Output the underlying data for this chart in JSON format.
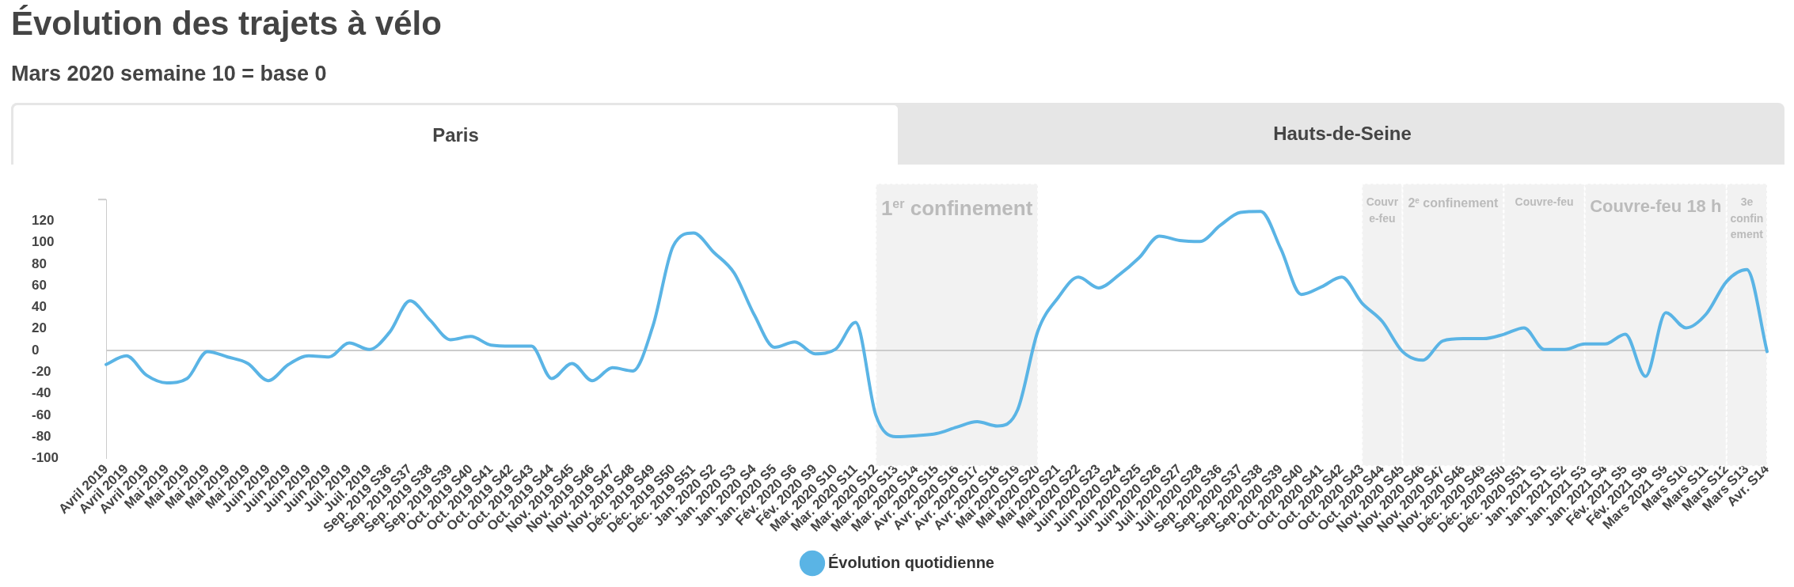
{
  "chart_data": {
    "type": "line",
    "title": "Évolution des trajets à vélo",
    "subtitle": "Mars 2020 semaine 10 = base 0",
    "annotations": [
      "Paris",
      "Hauts-de-Seine"
    ],
    "categories": [
      "Avril 2019",
      "Avril 2019",
      "Avril 2019",
      "Mai 2019",
      "Mai 2019",
      "Mai 2019",
      "Mai 2019",
      "Mai 2019",
      "Juin 2019",
      "Juin 2019",
      "Juin 2019",
      "Juin 2019",
      "Juil. 2019",
      "Juil. 2019",
      "Sep. 2019 S36",
      "Sep. 2019 S37",
      "Sep. 2019 S38",
      "Sep. 2019 S39",
      "Oct. 2019 S40",
      "Oct. 2019 S41",
      "Oct. 2019 S42",
      "Oct. 2019 S43",
      "Oct. 2019 S44",
      "Nov. 2019 S45",
      "Nov. 2019 S46",
      "Nov. 2019 S47",
      "Nov. 2019 S48",
      "Déc. 2019 S49",
      "Déc. 2019 S50",
      "Déc. 2019 S51",
      "Jan. 2020 S2",
      "Jan. 2020 S3",
      "Jan. 2020 S4",
      "Jan. 2020 S5",
      "Fév. 2020 S6",
      "Fév. 2020 S9",
      "Mar. 2020 S10",
      "Mar. 2020 S11",
      "Mar. 2020 S12",
      "Mar. 2020 S13",
      "Mar. 2020 S14",
      "Avr. 2020 S15",
      "Avr. 2020 S16",
      "Avr. 2020 S17",
      "Avr. 2020 S18",
      "Mai 2020 S19",
      "Mai 2020 S20",
      "Mai 2020 S21",
      "Mai 2020 S22",
      "Juin 2020 S23",
      "Juin 2020 S24",
      "Juin 2020 S25",
      "Juin 2020 S26",
      "Juil. 2020 S27",
      "Juil. 2020 S28",
      "Sep. 2020 S36",
      "Sep. 2020 S37",
      "Sep. 2020 S38",
      "Sep. 2020 S39",
      "Oct. 2020 S40",
      "Oct. 2020 S41",
      "Oct. 2020 S42",
      "Oct. 2020 S43",
      "Oct. 2020 S44",
      "Nov. 2020 S45",
      "Nov. 2020 S46",
      "Nov. 2020 S47",
      "Nov. 2020 S48",
      "Déc. 2020 S49",
      "Déc. 2020 S50",
      "Déc. 2020 S51",
      "Jan. 2021 S1",
      "Jan. 2021 S2",
      "Jan. 2021 S3",
      "Jan. 2021 S4",
      "Fév. 2021 S5",
      "Fév. 2021 S6",
      "Mars 2021 S9",
      "Mars S10",
      "Mars S11",
      "Mars S12",
      "Mars S13",
      "Avr. S14"
    ],
    "series": [
      {
        "name": "Évolution quotidienne",
        "color": "#5ab4e5",
        "values": [
          -13,
          -5,
          -23,
          -30,
          -26,
          -1,
          -6,
          -12,
          -28,
          -13,
          -5,
          -6,
          7,
          1,
          17,
          46,
          28,
          10,
          13,
          5,
          4,
          4,
          -26,
          -12,
          -28,
          -16,
          -19,
          23,
          97,
          109,
          91,
          72,
          33,
          3,
          8,
          -3,
          1,
          26,
          -60,
          -80,
          -79,
          -77,
          -71,
          -66,
          -70,
          -55,
          18,
          49,
          68,
          58,
          70,
          86,
          106,
          102,
          101,
          116,
          128,
          129,
          94,
          52,
          59,
          68,
          44,
          27,
          -1,
          -9,
          9,
          11,
          11,
          15,
          21,
          1,
          1,
          6,
          6,
          15,
          -24,
          35,
          21,
          34,
          64,
          75,
          -1
        ]
      }
    ],
    "ylim": [
      -100,
      140
    ],
    "yticks": [
      -100,
      -80,
      -60,
      -40,
      -20,
      0,
      20,
      40,
      60,
      80,
      100,
      120,
      {
        "value": 140,
        "label": null
      }
    ],
    "grid": false,
    "legend": "bottom",
    "marker": "none",
    "line_style": "solid",
    "ref_lines": [
      {
        "axis": "y",
        "value": 0,
        "color": "#cccccc"
      }
    ],
    "bands": [
      {
        "axis": "x",
        "from": "Mar. 2020 S12",
        "to": "Mai 2020 S20",
        "label": "1$^{er}$ confinement",
        "color": "#f2f2f2"
      },
      {
        "axis": "x",
        "from": "Oct. 2020 S43",
        "to": "Nov. 2020 S45",
        "label": "Couvre-feu",
        "color": "#f2f2f2"
      },
      {
        "axis": "x",
        "from": "Nov. 2020 S45",
        "to": "Déc. 2020 S50",
        "label": "2$^{e}$ confinement",
        "color": "#f2f2f2"
      },
      {
        "axis": "x",
        "from": "Déc. 2020 S50",
        "to": "Jan. 2021 S3",
        "label": "Couvre-feu",
        "color": "#f2f2f2"
      },
      {
        "axis": "x",
        "from": "Jan. 2021 S3",
        "to": "Mars S12",
        "label": "Couvre-feu 18 h",
        "color": "#f2f2f2"
      },
      {
        "axis": "x",
        "from": "Mars S12",
        "to": "Avr. S14",
        "label": "3e confinement",
        "color": "#f2f2f2"
      }
    ]
  }
}
